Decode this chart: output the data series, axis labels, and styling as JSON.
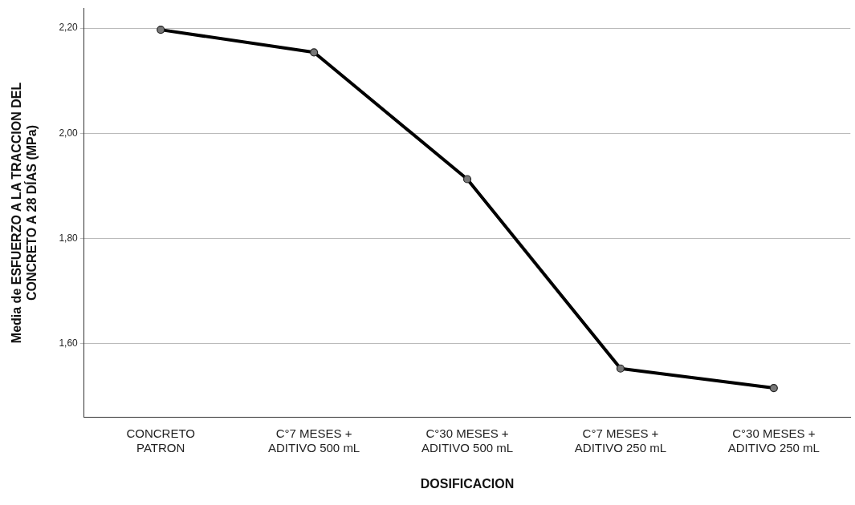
{
  "chart_data": {
    "type": "line",
    "xlabel": "DOSIFICACION",
    "ylabel": "Media de ESFUERZO A LA TRACCION DEL CONCRETO A 28 DÍAS (MPa)",
    "categories": [
      "CONCRETO PATRON",
      "C°7 MESES + ADITIVO 500 mL",
      "C°30 MESES + ADITIVO 500 mL",
      "C°7 MESES + ADITIVO 250 mL",
      "C°30 MESES + ADITIVO 250 mL"
    ],
    "series": [
      {
        "color": "#000000",
        "values": [
          2.197,
          2.154,
          1.913,
          1.553,
          1.516
        ]
      }
    ],
    "ylim": [
      1.46,
      2.238
    ],
    "yticks": [
      {
        "value": 1.6,
        "label": "1,60"
      },
      {
        "value": 1.8,
        "label": "1,80"
      },
      {
        "value": 2.0,
        "label": "2,00"
      },
      {
        "value": 2.2,
        "label": "2,20"
      }
    ],
    "grid": "y",
    "marker": "circle",
    "line_style": "solid",
    "legend": false
  }
}
